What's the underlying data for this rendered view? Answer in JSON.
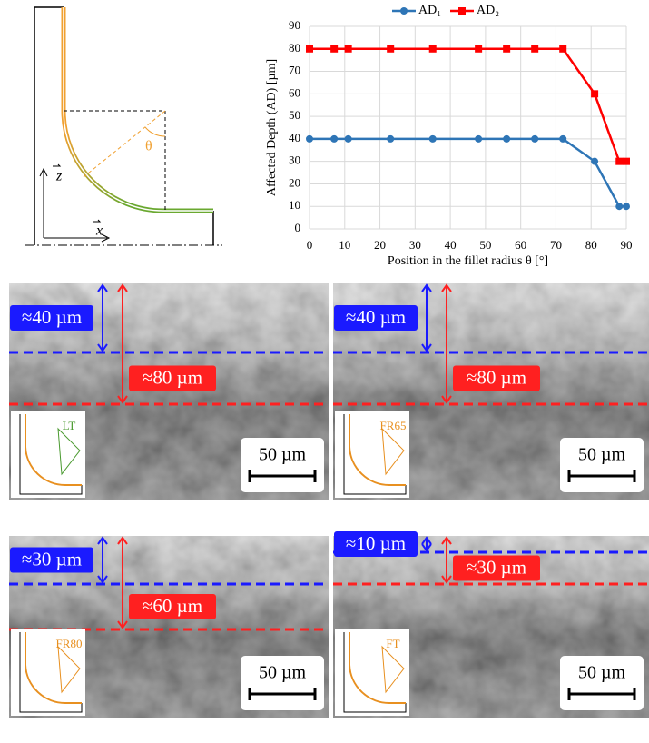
{
  "chart_data": {
    "type": "line",
    "x_label": "Position in the fillet radius θ [°]",
    "y_label": "Affected Depth (AD) [µm]",
    "x": [
      0,
      7,
      11,
      23,
      35,
      48,
      56,
      64,
      72,
      81,
      88,
      90
    ],
    "series": [
      {
        "name": "AD₁",
        "color": "#2e75b6",
        "marker": "circle",
        "values": [
          40,
          40,
          40,
          40,
          40,
          40,
          40,
          40,
          40,
          30,
          10,
          10
        ]
      },
      {
        "name": "AD₂",
        "color": "#ff0000",
        "marker": "square",
        "values": [
          80,
          80,
          80,
          80,
          80,
          80,
          80,
          80,
          80,
          60,
          30,
          30
        ]
      }
    ],
    "xlim": [
      0,
      90
    ],
    "xticks": [
      0,
      10,
      20,
      30,
      40,
      50,
      60,
      70,
      80,
      90
    ],
    "ylim": [
      0,
      90
    ],
    "yticks": [
      0,
      10,
      20,
      30,
      40,
      50,
      60,
      70,
      80,
      90
    ],
    "grid": true,
    "legend": "top"
  },
  "diagram": {
    "theta": "θ",
    "z_axis": "z",
    "x_axis": "x"
  },
  "panels": [
    {
      "ad1": "≈40 µm",
      "ad2": "≈80 µm",
      "inset": "LT",
      "scale": "50 µm"
    },
    {
      "ad1": "≈40 µm",
      "ad2": "≈80 µm",
      "inset": "FR65",
      "scale": "50 µm"
    },
    {
      "ad1": "≈30 µm",
      "ad2": "≈60 µm",
      "inset": "FR80",
      "scale": "50 µm"
    },
    {
      "ad1": "≈10 µm",
      "ad2": "≈30 µm",
      "inset": "FT",
      "scale": "50 µm"
    }
  ]
}
